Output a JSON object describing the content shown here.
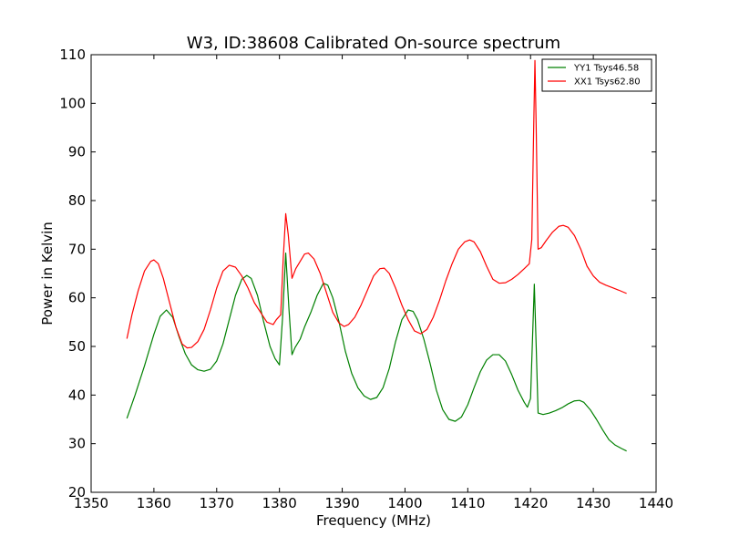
{
  "chart_data": {
    "type": "line",
    "title": "W3, ID:38608 Calibrated On-source spectrum",
    "xlabel": "Frequency (MHz)",
    "ylabel": "Power in Kelvin",
    "xlim": [
      1350,
      1440
    ],
    "ylim": [
      20,
      110
    ],
    "xticks": [
      1350,
      1360,
      1370,
      1380,
      1390,
      1400,
      1410,
      1420,
      1430,
      1440
    ],
    "yticks": [
      20,
      30,
      40,
      50,
      60,
      70,
      80,
      90,
      100,
      110
    ],
    "grid": false,
    "legend_position": "top-right",
    "series": [
      {
        "name": "YY1 Tsys46.58",
        "color": "#008000",
        "points": [
          [
            1355.7,
            35.2
          ],
          [
            1357.0,
            40.0
          ],
          [
            1358.5,
            46.0
          ],
          [
            1360.0,
            52.5
          ],
          [
            1361.0,
            56.2
          ],
          [
            1362.0,
            57.5
          ],
          [
            1363.0,
            56.0
          ],
          [
            1364.0,
            52.0
          ],
          [
            1365.0,
            48.5
          ],
          [
            1366.0,
            46.2
          ],
          [
            1367.0,
            45.2
          ],
          [
            1368.0,
            44.9
          ],
          [
            1369.0,
            45.3
          ],
          [
            1370.0,
            47.0
          ],
          [
            1371.0,
            50.5
          ],
          [
            1372.0,
            55.5
          ],
          [
            1373.0,
            60.5
          ],
          [
            1374.0,
            63.8
          ],
          [
            1374.8,
            64.6
          ],
          [
            1375.5,
            64.0
          ],
          [
            1376.5,
            60.5
          ],
          [
            1377.5,
            55.0
          ],
          [
            1378.5,
            50.0
          ],
          [
            1379.3,
            47.5
          ],
          [
            1380.0,
            46.2
          ],
          [
            1380.5,
            56.0
          ],
          [
            1381.0,
            69.2
          ],
          [
            1381.5,
            58.0
          ],
          [
            1382.0,
            48.3
          ],
          [
            1382.5,
            49.8
          ],
          [
            1383.3,
            51.5
          ],
          [
            1384.0,
            54.0
          ],
          [
            1385.0,
            57.0
          ],
          [
            1386.0,
            60.5
          ],
          [
            1387.0,
            63.0
          ],
          [
            1387.7,
            62.6
          ],
          [
            1388.5,
            60.0
          ],
          [
            1389.5,
            55.0
          ],
          [
            1390.5,
            49.0
          ],
          [
            1391.5,
            44.5
          ],
          [
            1392.5,
            41.5
          ],
          [
            1393.5,
            39.8
          ],
          [
            1394.5,
            39.1
          ],
          [
            1395.5,
            39.5
          ],
          [
            1396.5,
            41.5
          ],
          [
            1397.5,
            45.5
          ],
          [
            1398.5,
            51.0
          ],
          [
            1399.5,
            55.5
          ],
          [
            1400.5,
            57.5
          ],
          [
            1401.3,
            57.2
          ],
          [
            1402.0,
            55.5
          ],
          [
            1403.0,
            51.5
          ],
          [
            1404.0,
            46.5
          ],
          [
            1405.0,
            41.0
          ],
          [
            1406.0,
            37.0
          ],
          [
            1407.0,
            35.0
          ],
          [
            1408.0,
            34.6
          ],
          [
            1409.0,
            35.5
          ],
          [
            1410.0,
            38.0
          ],
          [
            1411.0,
            41.5
          ],
          [
            1412.0,
            44.8
          ],
          [
            1413.0,
            47.2
          ],
          [
            1414.0,
            48.3
          ],
          [
            1415.0,
            48.3
          ],
          [
            1416.0,
            47.0
          ],
          [
            1417.0,
            44.2
          ],
          [
            1418.0,
            41.0
          ],
          [
            1419.0,
            38.5
          ],
          [
            1419.5,
            37.5
          ],
          [
            1420.0,
            39.3
          ],
          [
            1420.4,
            55.0
          ],
          [
            1420.6,
            62.8
          ],
          [
            1420.9,
            50.0
          ],
          [
            1421.2,
            36.3
          ],
          [
            1422.0,
            36.0
          ],
          [
            1423.0,
            36.3
          ],
          [
            1424.0,
            36.8
          ],
          [
            1425.0,
            37.4
          ],
          [
            1426.0,
            38.2
          ],
          [
            1427.0,
            38.8
          ],
          [
            1427.8,
            38.9
          ],
          [
            1428.5,
            38.5
          ],
          [
            1429.5,
            37.0
          ],
          [
            1430.5,
            35.0
          ],
          [
            1431.5,
            32.8
          ],
          [
            1432.5,
            30.8
          ],
          [
            1433.5,
            29.7
          ],
          [
            1434.5,
            29.0
          ],
          [
            1435.3,
            28.5
          ]
        ]
      },
      {
        "name": "XX1 Tsys62.80",
        "color": "#ff0000",
        "points": [
          [
            1355.7,
            51.6
          ],
          [
            1356.5,
            56.5
          ],
          [
            1357.5,
            61.5
          ],
          [
            1358.5,
            65.5
          ],
          [
            1359.5,
            67.5
          ],
          [
            1360.0,
            67.8
          ],
          [
            1360.7,
            67.0
          ],
          [
            1361.5,
            64.0
          ],
          [
            1362.5,
            59.0
          ],
          [
            1363.5,
            54.0
          ],
          [
            1364.5,
            50.5
          ],
          [
            1365.3,
            49.7
          ],
          [
            1366.0,
            49.8
          ],
          [
            1367.0,
            51.0
          ],
          [
            1368.0,
            53.5
          ],
          [
            1369.0,
            57.5
          ],
          [
            1370.0,
            62.0
          ],
          [
            1371.0,
            65.5
          ],
          [
            1372.0,
            66.7
          ],
          [
            1373.0,
            66.3
          ],
          [
            1374.0,
            64.5
          ],
          [
            1375.0,
            62.0
          ],
          [
            1376.0,
            59.0
          ],
          [
            1377.0,
            57.0
          ],
          [
            1378.0,
            55.0
          ],
          [
            1379.0,
            54.5
          ],
          [
            1379.5,
            55.5
          ],
          [
            1380.2,
            56.5
          ],
          [
            1380.6,
            68.0
          ],
          [
            1381.0,
            77.3
          ],
          [
            1381.4,
            73.0
          ],
          [
            1382.0,
            64.0
          ],
          [
            1382.6,
            66.0
          ],
          [
            1383.3,
            67.5
          ],
          [
            1384.0,
            69.0
          ],
          [
            1384.6,
            69.2
          ],
          [
            1385.5,
            68.0
          ],
          [
            1386.5,
            65.0
          ],
          [
            1387.5,
            61.0
          ],
          [
            1388.5,
            57.0
          ],
          [
            1389.5,
            54.8
          ],
          [
            1390.3,
            54.1
          ],
          [
            1391.0,
            54.5
          ],
          [
            1392.0,
            56.0
          ],
          [
            1393.0,
            58.5
          ],
          [
            1394.0,
            61.5
          ],
          [
            1395.0,
            64.5
          ],
          [
            1396.0,
            66.0
          ],
          [
            1396.7,
            66.1
          ],
          [
            1397.5,
            65.0
          ],
          [
            1398.5,
            62.0
          ],
          [
            1399.5,
            58.5
          ],
          [
            1400.5,
            55.5
          ],
          [
            1401.5,
            53.2
          ],
          [
            1402.5,
            52.6
          ],
          [
            1403.5,
            53.5
          ],
          [
            1404.5,
            56.0
          ],
          [
            1405.5,
            59.5
          ],
          [
            1406.5,
            63.5
          ],
          [
            1407.5,
            67.0
          ],
          [
            1408.5,
            70.0
          ],
          [
            1409.5,
            71.5
          ],
          [
            1410.3,
            71.9
          ],
          [
            1411.0,
            71.5
          ],
          [
            1412.0,
            69.5
          ],
          [
            1413.0,
            66.5
          ],
          [
            1414.0,
            63.8
          ],
          [
            1415.0,
            63.0
          ],
          [
            1416.0,
            63.1
          ],
          [
            1417.0,
            63.8
          ],
          [
            1418.0,
            64.8
          ],
          [
            1419.0,
            66.0
          ],
          [
            1419.8,
            67.0
          ],
          [
            1420.2,
            72.0
          ],
          [
            1420.5,
            95.0
          ],
          [
            1420.7,
            108.8
          ],
          [
            1420.9,
            95.0
          ],
          [
            1421.2,
            70.0
          ],
          [
            1421.7,
            70.3
          ],
          [
            1422.5,
            71.8
          ],
          [
            1423.5,
            73.5
          ],
          [
            1424.5,
            74.7
          ],
          [
            1425.2,
            74.9
          ],
          [
            1426.0,
            74.5
          ],
          [
            1427.0,
            72.8
          ],
          [
            1428.0,
            70.0
          ],
          [
            1429.0,
            66.5
          ],
          [
            1430.0,
            64.5
          ],
          [
            1431.0,
            63.2
          ],
          [
            1432.0,
            62.6
          ],
          [
            1433.0,
            62.1
          ],
          [
            1434.0,
            61.6
          ],
          [
            1435.3,
            60.9
          ]
        ]
      }
    ]
  }
}
